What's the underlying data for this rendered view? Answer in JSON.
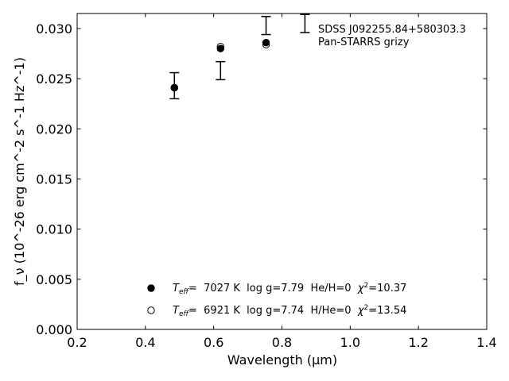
{
  "chart_data": {
    "type": "scatter",
    "xlabel": "Wavelength (μm)",
    "ylabel": "f_ν (10^-26 erg cm^-2 s^-1 Hz^-1)",
    "xlim": [
      0.2,
      1.4
    ],
    "ylim": [
      0.0,
      0.0315
    ],
    "xticks": [
      0.2,
      0.4,
      0.6,
      0.8,
      1.0,
      1.2,
      1.4
    ],
    "xtick_labels": [
      "0.2",
      "0.4",
      "0.6",
      "0.8",
      "1.0",
      "1.2",
      "1.4"
    ],
    "yticks": [
      0.0,
      0.005,
      0.01,
      0.015,
      0.02,
      0.025,
      0.03
    ],
    "ytick_labels": [
      "0.000",
      "0.005",
      "0.010",
      "0.015",
      "0.020",
      "0.025",
      "0.030"
    ],
    "grid": false,
    "legend_position": "bottom-center",
    "annotation": {
      "line1": "SDSS J092255.84+580303.3",
      "line2": "Pan-STARRS grizy"
    },
    "observed": {
      "x": [
        0.4849,
        0.6201,
        0.7535,
        0.8674
      ],
      "y": [
        0.0243,
        0.0258,
        0.0303,
        0.0305
      ],
      "yerr": [
        0.0013,
        0.0009,
        0.0009,
        0.0009
      ]
    },
    "series": [
      {
        "name": "Teff=  7027 K  log g=7.79  He/H=0  χ2=10.37",
        "marker": "filled",
        "x": [
          0.4849,
          0.6201,
          0.7535
        ],
        "y": [
          0.0241,
          0.028,
          0.0286
        ]
      },
      {
        "name": "Teff=  6921 K  log g=7.74  H/He=0  χ2=13.54",
        "marker": "open",
        "x": [
          0.4849,
          0.6201,
          0.7535
        ],
        "y": [
          0.0241,
          0.0282,
          0.0284
        ]
      }
    ],
    "legend": [
      {
        "teff_label": "T",
        "teff_sub": "eff",
        "params": "=  7027 K  log g=7.79  He/H=0  ",
        "chi_label": "χ",
        "chi_sup": "2",
        "chi_value": "=10.37"
      },
      {
        "teff_label": "T",
        "teff_sub": "eff",
        "params": "=  6921 K  log g=7.74  H/He=0  ",
        "chi_label": "χ",
        "chi_sup": "2",
        "chi_value": "=13.54"
      }
    ],
    "colors": {
      "marker": "#000000",
      "axis": "#000000",
      "background": "#ffffff"
    }
  }
}
